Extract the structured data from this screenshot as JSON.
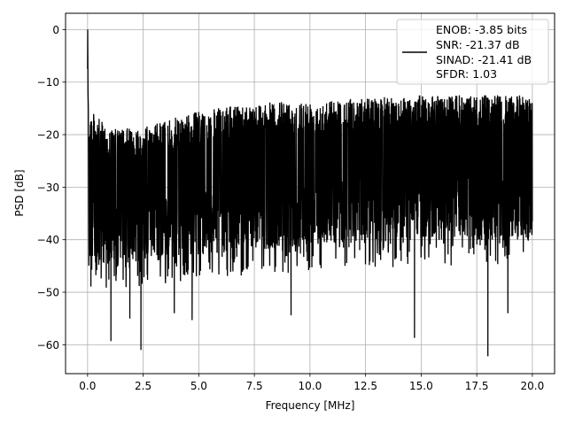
{
  "chart_data": {
    "type": "line",
    "xlabel": "Frequency [MHz]",
    "ylabel": "PSD [dB]",
    "xlim": [
      -0.99,
      21.0
    ],
    "ylim": [
      -65.5,
      3.1
    ],
    "xticks": [
      0.0,
      2.5,
      5.0,
      7.5,
      10.0,
      12.5,
      15.0,
      17.5,
      20.0
    ],
    "xtick_labels": [
      "0.0",
      "2.5",
      "5.0",
      "7.5",
      "10.0",
      "12.5",
      "15.0",
      "17.5",
      "20.0"
    ],
    "yticks": [
      0,
      -10,
      -20,
      -30,
      -40,
      -50,
      -60
    ],
    "ytick_labels": [
      "0",
      "−10",
      "−20",
      "−30",
      "−40",
      "−50",
      "−60"
    ],
    "grid": true,
    "legend_position": "top-right",
    "series": [
      {
        "color": "#000000",
        "legend_lines": [
          "ENOB: -3.85 bits",
          "SNR: -21.37 dB",
          "SINAD: -21.41 dB",
          "SFDR: 1.03"
        ],
        "peak": {
          "x": 0.0,
          "y": 0.0
        },
        "x_range": [
          0.0,
          20.0
        ],
        "upper_envelope": [
          [
            0.05,
            -15
          ],
          [
            1,
            -19
          ],
          [
            2.5,
            -18.5
          ],
          [
            5,
            -15.5
          ],
          [
            7.5,
            -14
          ],
          [
            10,
            -13.5
          ],
          [
            12.5,
            -13
          ],
          [
            15,
            -12.5
          ],
          [
            17.5,
            -12.5
          ],
          [
            20,
            -12.5
          ]
        ],
        "noise_floor": [
          [
            0.05,
            -30
          ],
          [
            5,
            -28
          ],
          [
            10,
            -26
          ],
          [
            15,
            -25
          ],
          [
            20,
            -25
          ]
        ],
        "notable_dips": [
          {
            "x": 1.05,
            "y": -59.3
          },
          {
            "x": 2.4,
            "y": -61.0
          },
          {
            "x": 4.7,
            "y": -55.3
          },
          {
            "x": 9.15,
            "y": -54.4
          },
          {
            "x": 14.7,
            "y": -58.7
          },
          {
            "x": 18.0,
            "y": -62.2
          },
          {
            "x": 18.9,
            "y": -54.0
          },
          {
            "x": 1.9,
            "y": -55.0
          },
          {
            "x": 3.9,
            "y": -54.0
          }
        ]
      }
    ]
  }
}
